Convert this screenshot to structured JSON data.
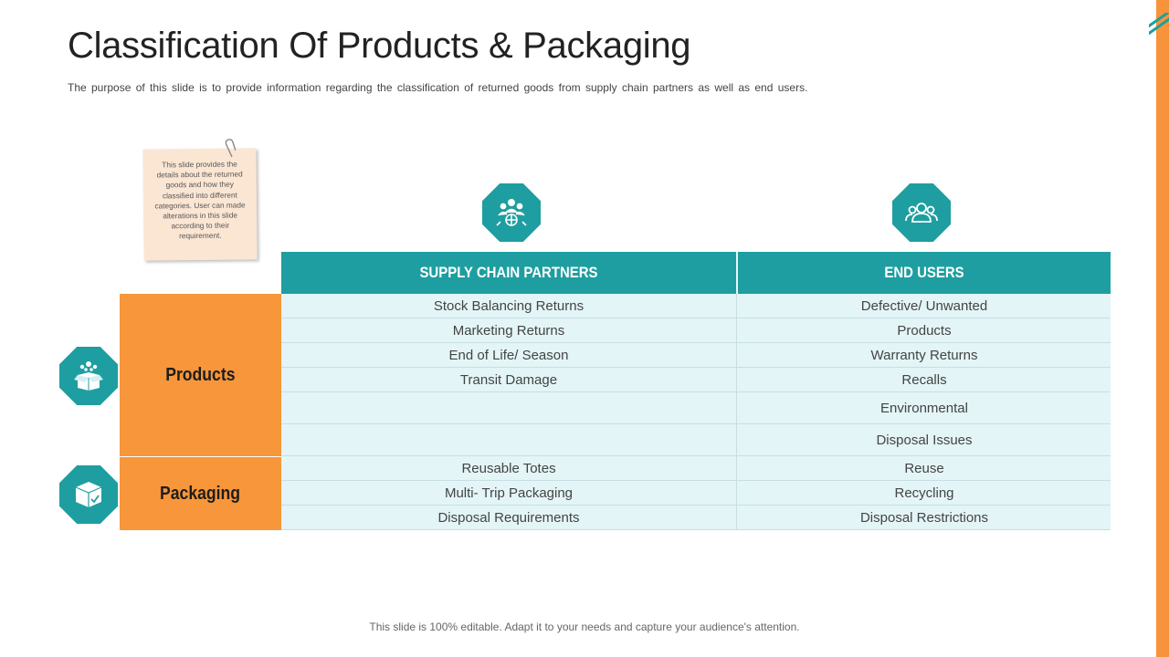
{
  "slide": {
    "title": "Classification Of Products & Packaging",
    "subtitle": "The purpose of this slide is to provide information regarding the classification of returned goods from supply chain partners as well as end users.",
    "note": "This slide provides the details about the returned goods and how they classified into different categories. User can made alterations in this slide according to their requirement.",
    "footer": "This slide is 100% editable. Adapt it to your needs and capture your audience's attention."
  },
  "colors": {
    "teal": "#1e9ea0",
    "orange": "#f7963a",
    "light_row": "#e3f5f7"
  },
  "icons": {
    "supply_chain": "network-people-icon",
    "end_users": "users-icon",
    "products": "open-box-icon",
    "packaging": "package-check-icon"
  },
  "table": {
    "headers": [
      "SUPPLY CHAIN PARTNERS",
      "END USERS"
    ],
    "categories": [
      "Products",
      "Packaging"
    ],
    "rows": [
      [
        "Stock Balancing Returns",
        "Defective/ Unwanted"
      ],
      [
        "Marketing Returns",
        "Products"
      ],
      [
        "End of Life/ Season",
        "Warranty Returns"
      ],
      [
        "Transit Damage",
        "Recalls"
      ],
      [
        "",
        "Environmental"
      ],
      [
        "",
        "Disposal Issues"
      ],
      [
        "Reusable Totes",
        "Reuse"
      ],
      [
        "Multi- Trip Packaging",
        "Recycling"
      ],
      [
        "Disposal Requirements",
        "Disposal Restrictions"
      ]
    ]
  }
}
